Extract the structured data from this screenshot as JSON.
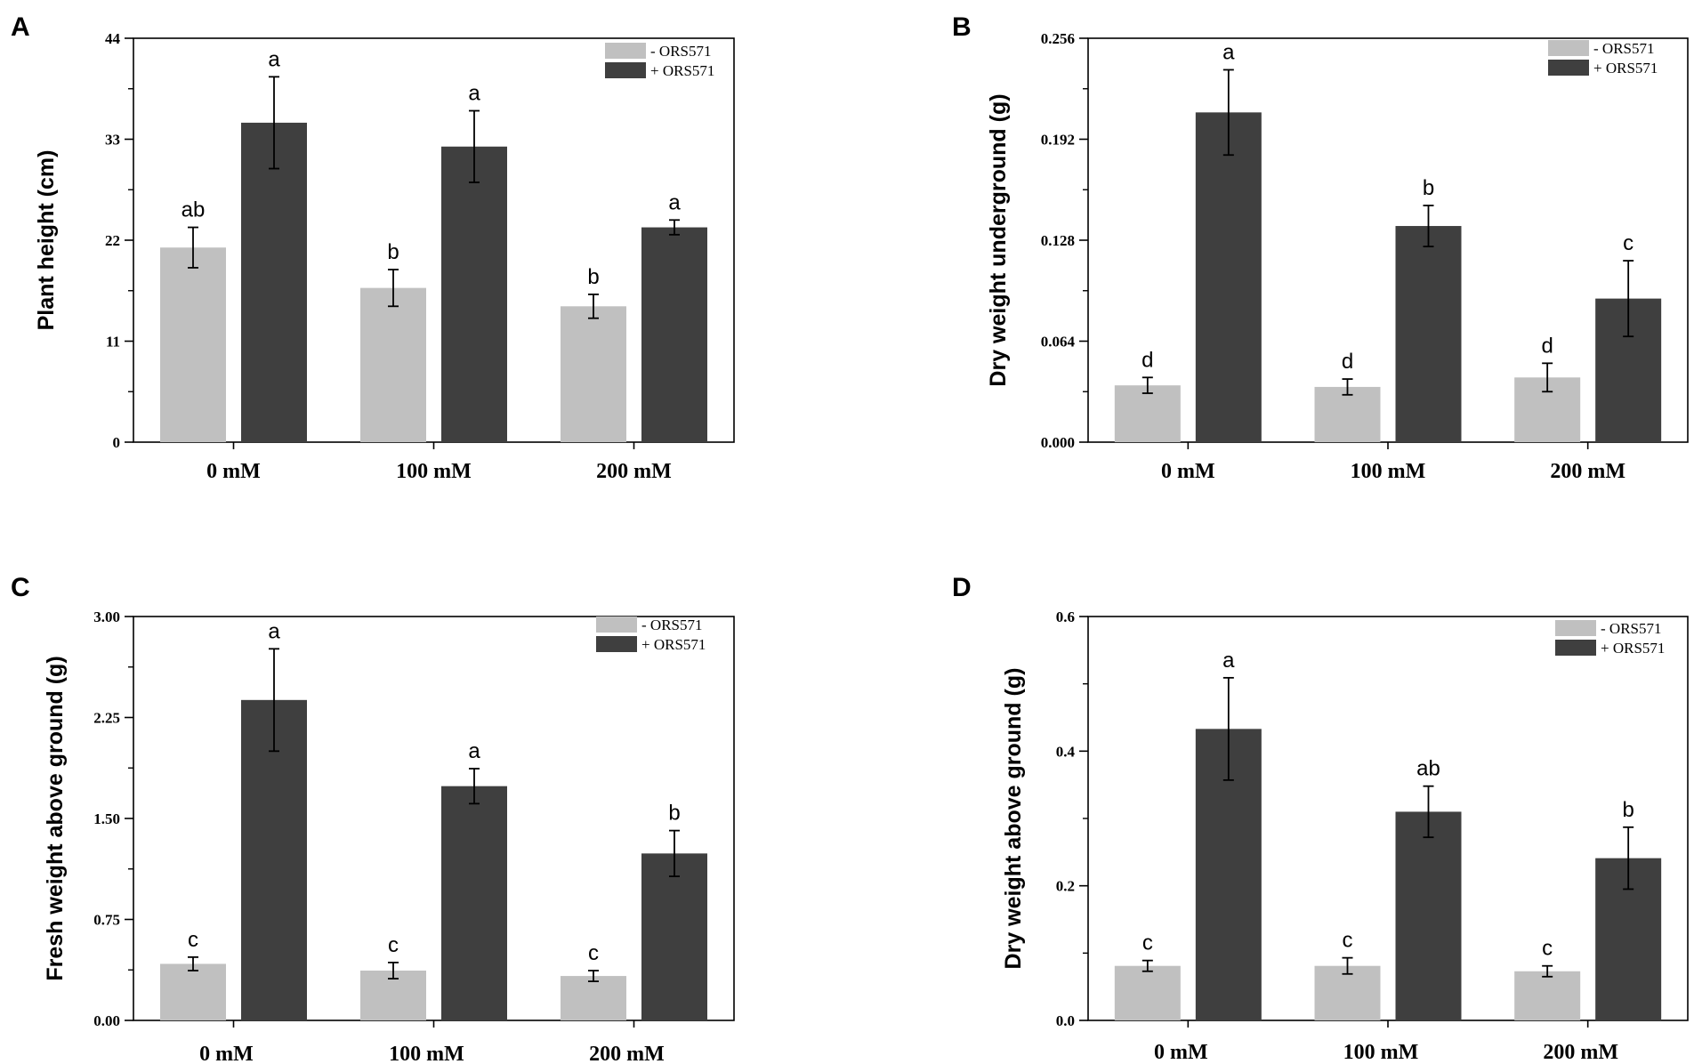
{
  "figure": {
    "colors": {
      "control": "#c0c0c0",
      "treated": "#3f3f3f",
      "axis": "#000000",
      "error_bar": "#000000"
    }
  },
  "chart_data": [
    {
      "panel": "A",
      "type": "bar",
      "ylabel": "Plant height (cm)",
      "categories": [
        "0 mM",
        "100 mM",
        "200 mM"
      ],
      "ylim": [
        0,
        44
      ],
      "yticks": [
        0,
        11,
        22,
        33,
        44
      ],
      "ytick_labels": [
        "0",
        "11",
        "22",
        "33",
        "44"
      ],
      "legend": [
        "- ORS571",
        "+ ORS571"
      ],
      "series": [
        {
          "name": "- ORS571",
          "values": [
            21.2,
            16.8,
            14.8
          ],
          "errors": [
            2.2,
            2.0,
            1.3
          ],
          "letters": [
            "ab",
            "b",
            "b"
          ]
        },
        {
          "name": "+ ORS571",
          "values": [
            34.8,
            32.2,
            23.4
          ],
          "errors": [
            5.0,
            3.9,
            0.8
          ],
          "letters": [
            "a",
            "a",
            "a"
          ]
        }
      ]
    },
    {
      "panel": "B",
      "type": "bar",
      "ylabel": "Dry weight underground  (g)",
      "categories": [
        "0 mM",
        "100 mM",
        "200 mM"
      ],
      "ylim": [
        0,
        0.256
      ],
      "yticks": [
        0,
        0.064,
        0.128,
        0.192,
        0.256
      ],
      "ytick_labels": [
        "0.000",
        "0.064",
        "0.128",
        "0.192",
        "0.256"
      ],
      "legend": [
        "- ORS571",
        "+ ORS571"
      ],
      "series": [
        {
          "name": "- ORS571",
          "values": [
            0.036,
            0.035,
            0.041
          ],
          "errors": [
            0.005,
            0.005,
            0.009
          ],
          "letters": [
            "d",
            "d",
            "d"
          ]
        },
        {
          "name": "+ ORS571",
          "values": [
            0.209,
            0.137,
            0.091
          ],
          "errors": [
            0.027,
            0.013,
            0.024
          ],
          "letters": [
            "a",
            "b",
            "c"
          ]
        }
      ]
    },
    {
      "panel": "C",
      "type": "bar",
      "ylabel": "Fresh weight above ground  (g)",
      "categories": [
        "0 mM",
        "100 mM",
        "200 mM"
      ],
      "ylim": [
        0,
        3.0
      ],
      "yticks": [
        0,
        0.75,
        1.5,
        2.25,
        3.0
      ],
      "ytick_labels": [
        "0.00",
        "0.75",
        "1.50",
        "2.25",
        "3.00"
      ],
      "legend": [
        "- ORS571",
        "+ ORS571"
      ],
      "series": [
        {
          "name": "- ORS571",
          "values": [
            0.42,
            0.37,
            0.33
          ],
          "errors": [
            0.05,
            0.06,
            0.04
          ],
          "letters": [
            "c",
            "c",
            "c"
          ]
        },
        {
          "name": "+ ORS571",
          "values": [
            2.38,
            1.74,
            1.24
          ],
          "errors": [
            0.38,
            0.13,
            0.17
          ],
          "letters": [
            "a",
            "a",
            "b"
          ]
        }
      ]
    },
    {
      "panel": "D",
      "type": "bar",
      "ylabel": "Dry weight above ground  (g)",
      "categories": [
        "0 mM",
        "100 mM",
        "200 mM"
      ],
      "ylim": [
        0,
        0.6
      ],
      "yticks": [
        0,
        0.2,
        0.4,
        0.6
      ],
      "ytick_labels": [
        "0.0",
        "0.2",
        "0.4",
        "0.6"
      ],
      "legend": [
        "- ORS571",
        "+ ORS571"
      ],
      "series": [
        {
          "name": "- ORS571",
          "values": [
            0.081,
            0.081,
            0.073
          ],
          "errors": [
            0.008,
            0.012,
            0.008
          ],
          "letters": [
            "c",
            "c",
            "c"
          ]
        },
        {
          "name": "+ ORS571",
          "values": [
            0.433,
            0.31,
            0.241
          ],
          "errors": [
            0.076,
            0.038,
            0.046
          ],
          "letters": [
            "a",
            "ab",
            "b"
          ]
        }
      ]
    }
  ]
}
